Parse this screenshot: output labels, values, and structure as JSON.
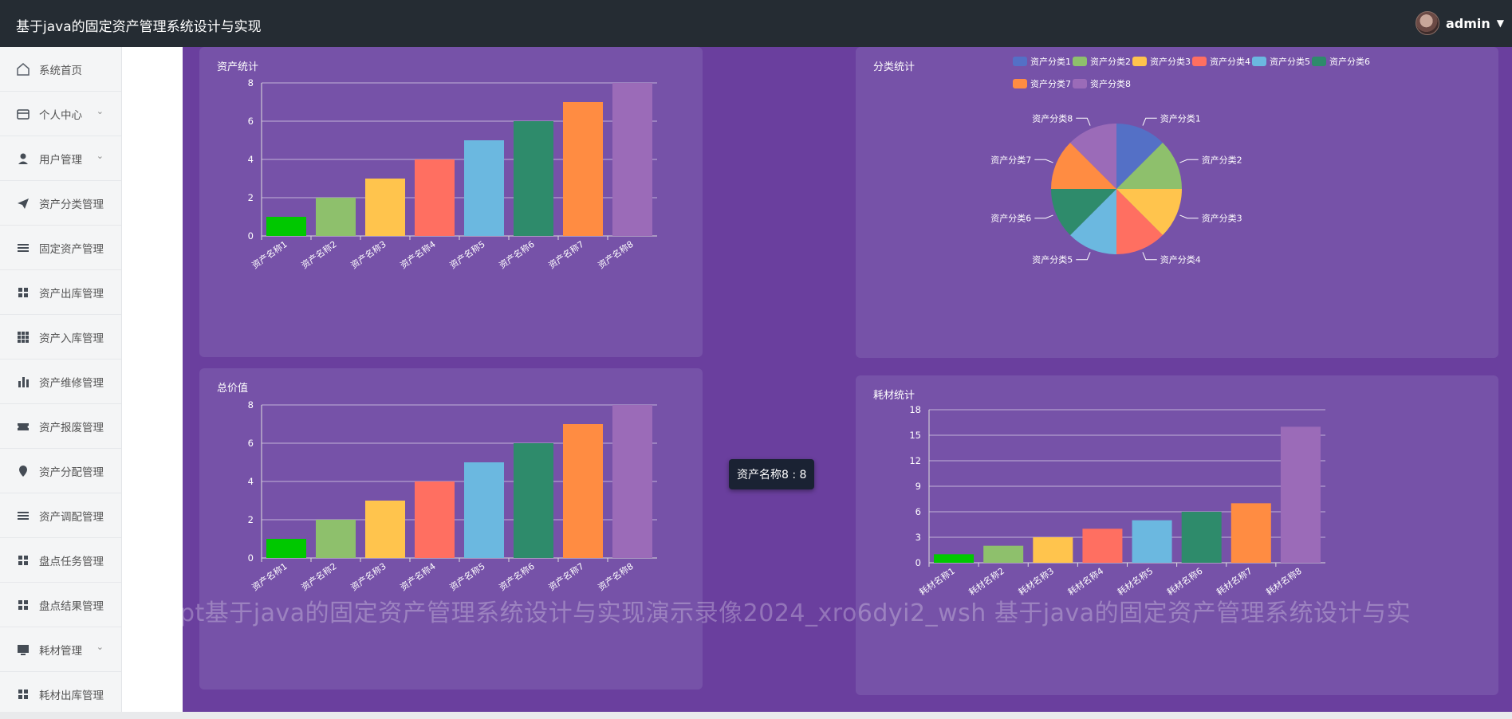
{
  "app": {
    "title": "基于java的固定资产管理系统设计与实现"
  },
  "user": {
    "name": "admin",
    "caret": "▼"
  },
  "sidebar": {
    "items": [
      {
        "label": "系统首页",
        "icon": "home-icon",
        "chevron": ""
      },
      {
        "label": "个人中心",
        "icon": "card-icon",
        "chevron": "⌄"
      },
      {
        "label": "用户管理",
        "icon": "user-icon",
        "chevron": "⌄"
      },
      {
        "label": "资产分类管理",
        "icon": "paper-plane-icon",
        "chevron": ""
      },
      {
        "label": "固定资产管理",
        "icon": "list-icon",
        "chevron": ""
      },
      {
        "label": "资产出库管理",
        "icon": "grid-icon",
        "chevron": ""
      },
      {
        "label": "资产入库管理",
        "icon": "grid-dots-icon",
        "chevron": ""
      },
      {
        "label": "资产维修管理",
        "icon": "bar-chart-icon",
        "chevron": ""
      },
      {
        "label": "资产报废管理",
        "icon": "ticket-icon",
        "chevron": ""
      },
      {
        "label": "资产分配管理",
        "icon": "location-icon",
        "chevron": ""
      },
      {
        "label": "资产调配管理",
        "icon": "list-icon",
        "chevron": ""
      },
      {
        "label": "盘点任务管理",
        "icon": "grid-icon",
        "chevron": ""
      },
      {
        "label": "盘点结果管理",
        "icon": "grid-icon",
        "chevron": ""
      },
      {
        "label": "耗材管理",
        "icon": "monitor-icon",
        "chevron": "⌄"
      },
      {
        "label": "耗材出库管理",
        "icon": "grid-icon",
        "chevron": ""
      }
    ]
  },
  "cards": {
    "asset_stats": {
      "title": "资产统计"
    },
    "category_stats": {
      "title": "分类统计"
    },
    "total_value": {
      "title": "总价值"
    },
    "consumable_stats": {
      "title": "耗材统计"
    }
  },
  "tooltip": {
    "text": "资产名称8 : 8"
  },
  "watermark": {
    "text": "pt基于java的固定资产管理系统设计与实现演示录像2024_xro6dyi2_wsh 基于java的固定资产管理系统设计与实"
  },
  "colors": {
    "palette": [
      "#00c800",
      "#8ec06c",
      "#ffc44d",
      "#ff6f61",
      "#6bb8e0",
      "#2e8b6b",
      "#ff8c42",
      "#9b6bb8"
    ],
    "pie_palette": [
      "#5470c6",
      "#8ec06c",
      "#ffc44d",
      "#ff6f61",
      "#6bb8e0",
      "#2e8b6b",
      "#ff8c42",
      "#9b6bb8"
    ]
  },
  "chart_data": [
    {
      "id": "asset_stats",
      "type": "bar",
      "title": "资产统计",
      "categories": [
        "资产名称1",
        "资产名称2",
        "资产名称3",
        "资产名称4",
        "资产名称5",
        "资产名称6",
        "资产名称7",
        "资产名称8"
      ],
      "values": [
        1,
        2,
        3,
        4,
        5,
        6,
        7,
        8
      ],
      "yticks": [
        0,
        2,
        4,
        6,
        8
      ],
      "ylim": [
        0,
        8
      ]
    },
    {
      "id": "category_stats",
      "type": "pie",
      "title": "分类统计",
      "categories": [
        "资产分类1",
        "资产分类2",
        "资产分类3",
        "资产分类4",
        "资产分类5",
        "资产分类6",
        "资产分类7",
        "资产分类8"
      ],
      "values": [
        1,
        1,
        1,
        1,
        1,
        1,
        1,
        1
      ],
      "legend": "top-right"
    },
    {
      "id": "total_value",
      "type": "bar",
      "title": "总价值",
      "categories": [
        "资产名称1",
        "资产名称2",
        "资产名称3",
        "资产名称4",
        "资产名称5",
        "资产名称6",
        "资产名称7",
        "资产名称8"
      ],
      "values": [
        1,
        2,
        3,
        4,
        5,
        6,
        7,
        8
      ],
      "yticks": [
        0,
        2,
        4,
        6,
        8
      ],
      "ylim": [
        0,
        8
      ]
    },
    {
      "id": "consumable_stats",
      "type": "bar",
      "title": "耗材统计",
      "categories": [
        "耗材名称1",
        "耗材名称2",
        "耗材名称3",
        "耗材名称4",
        "耗材名称5",
        "耗材名称6",
        "耗材名称7",
        "耗材名称8"
      ],
      "values": [
        1,
        2,
        3,
        4,
        5,
        6,
        7,
        16
      ],
      "yticks": [
        0,
        3,
        6,
        9,
        12,
        15,
        18
      ],
      "ylim": [
        0,
        18
      ]
    }
  ]
}
